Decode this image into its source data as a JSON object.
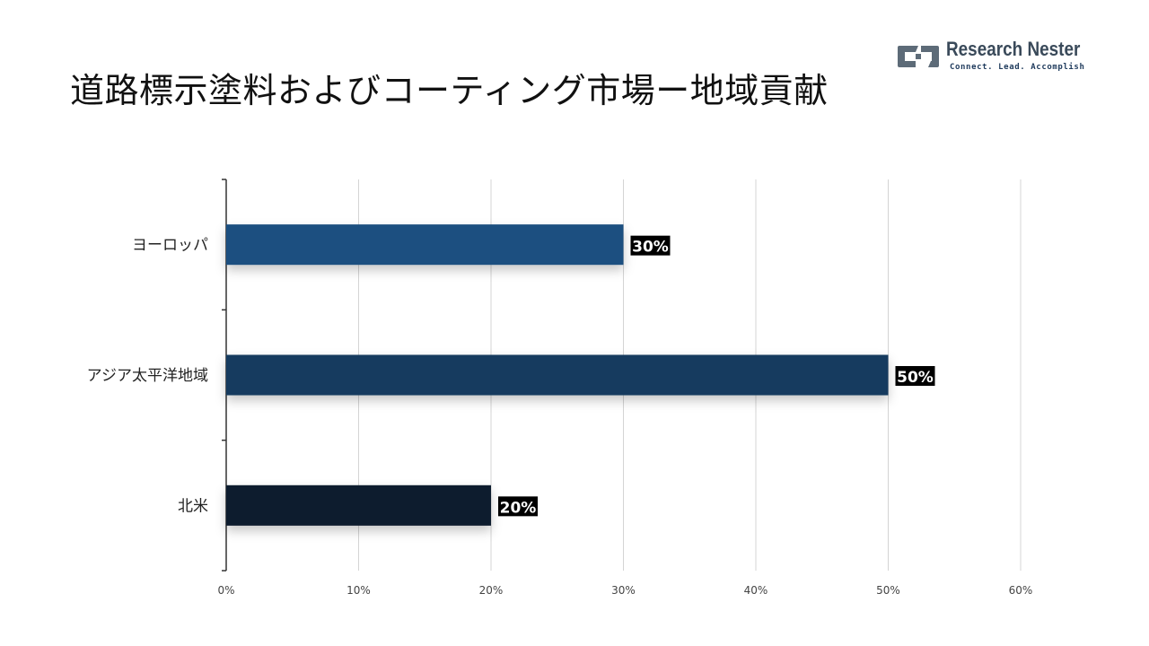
{
  "header": {
    "title": "道路標示塗料およびコーティング市場ー地域貢献"
  },
  "logo": {
    "name": "Research Nester",
    "tagline": "Connect. Lead. Accomplish",
    "icon": "research-nester-logo-icon",
    "colors": {
      "mark": "#5d6b78",
      "name": "#3a4a5a",
      "tagline": "#1e3a5c"
    }
  },
  "chart_data": {
    "type": "bar",
    "orientation": "horizontal",
    "categories": [
      "ヨーロッパ",
      "アジア太平洋地域",
      "北米"
    ],
    "values": [
      30,
      50,
      20
    ],
    "value_labels": [
      "30%",
      "50%",
      "20%"
    ],
    "colors": [
      "#1f5080",
      "#173a5e",
      "#0e1e2e"
    ],
    "xlim": [
      0,
      60
    ],
    "x_ticks": [
      0,
      10,
      20,
      30,
      40,
      50,
      60
    ],
    "x_tick_labels": [
      "0%",
      "10%",
      "20%",
      "30%",
      "40%",
      "50%",
      "60%"
    ],
    "grid": "vertical",
    "legend": "none"
  }
}
